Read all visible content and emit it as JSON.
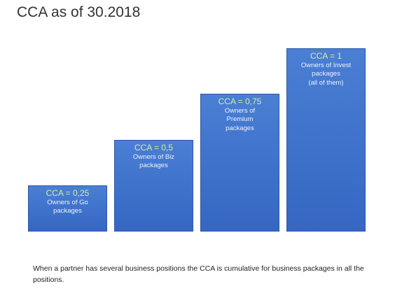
{
  "page": {
    "title": "CCA as of 30.2018",
    "footnote": "When a partner has several business positions the CCA is cumulative for business packages in all the positions."
  },
  "chart_data": {
    "type": "bar",
    "title": "",
    "xlabel": "",
    "ylabel": "",
    "ylim": [
      0,
      1
    ],
    "categories": [
      "Go",
      "Biz",
      "Premium",
      "Invest"
    ],
    "values": [
      0.25,
      0.5,
      0.75,
      1
    ],
    "labels": [
      {
        "value": "CCA = 0,25",
        "desc": "Owners of Go\npackages"
      },
      {
        "value": "CCA = 0,5",
        "desc": "Owners of Biz\npackages"
      },
      {
        "value": "CCA = 0,75",
        "desc": "Owners of\nPremium\npackages"
      },
      {
        "value": "CCA = 1",
        "desc": "Owners of Invest\npackages\n(all of them)"
      }
    ],
    "bar_color": "#3f74cc",
    "value_text_color": "#d7ee9a"
  }
}
